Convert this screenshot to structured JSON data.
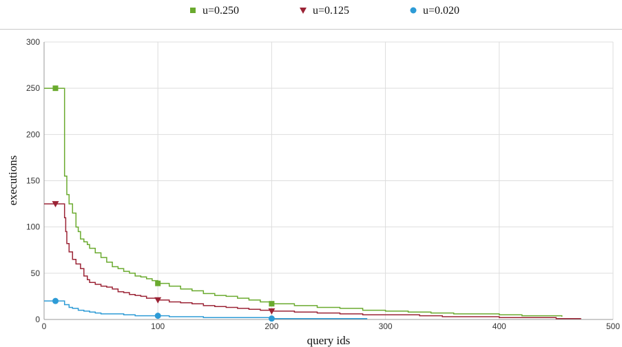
{
  "chart_data": {
    "type": "line",
    "title": "",
    "xlabel": "query ids",
    "ylabel": "executions",
    "xlim": [
      0,
      500
    ],
    "ylim": [
      0,
      300
    ],
    "x_ticks": [
      0,
      100,
      200,
      300,
      400,
      500
    ],
    "y_ticks": [
      0,
      50,
      100,
      150,
      200,
      250,
      300
    ],
    "grid": true,
    "legend_position": "top",
    "series": [
      {
        "name": "u=0.250",
        "color": "#6aaa2e",
        "marker": "square",
        "marker_x": [
          10,
          100,
          200
        ],
        "points": [
          [
            0,
            250
          ],
          [
            17,
            250
          ],
          [
            18,
            155
          ],
          [
            20,
            135
          ],
          [
            22,
            125
          ],
          [
            25,
            115
          ],
          [
            28,
            100
          ],
          [
            30,
            95
          ],
          [
            32,
            87
          ],
          [
            35,
            84
          ],
          [
            38,
            81
          ],
          [
            40,
            77
          ],
          [
            45,
            72
          ],
          [
            50,
            67
          ],
          [
            55,
            62
          ],
          [
            60,
            57
          ],
          [
            65,
            55
          ],
          [
            70,
            52
          ],
          [
            75,
            50
          ],
          [
            80,
            47
          ],
          [
            85,
            46
          ],
          [
            90,
            44
          ],
          [
            95,
            42
          ],
          [
            100,
            39
          ],
          [
            110,
            36
          ],
          [
            120,
            33
          ],
          [
            130,
            31
          ],
          [
            140,
            28
          ],
          [
            150,
            26
          ],
          [
            160,
            25
          ],
          [
            170,
            23
          ],
          [
            180,
            21
          ],
          [
            190,
            19
          ],
          [
            200,
            17
          ],
          [
            220,
            15
          ],
          [
            240,
            13
          ],
          [
            260,
            12
          ],
          [
            280,
            10
          ],
          [
            300,
            9
          ],
          [
            320,
            8
          ],
          [
            340,
            7
          ],
          [
            360,
            6
          ],
          [
            380,
            6
          ],
          [
            400,
            5
          ],
          [
            420,
            4
          ],
          [
            440,
            4
          ],
          [
            455,
            3
          ]
        ]
      },
      {
        "name": "u=0.125",
        "color": "#9b2335",
        "marker": "triangle-down",
        "marker_x": [
          10,
          100,
          200
        ],
        "points": [
          [
            0,
            125
          ],
          [
            17,
            125
          ],
          [
            18,
            110
          ],
          [
            19,
            95
          ],
          [
            20,
            82
          ],
          [
            22,
            73
          ],
          [
            25,
            65
          ],
          [
            28,
            60
          ],
          [
            32,
            55
          ],
          [
            35,
            47
          ],
          [
            38,
            43
          ],
          [
            40,
            40
          ],
          [
            45,
            38
          ],
          [
            50,
            36
          ],
          [
            55,
            35
          ],
          [
            60,
            33
          ],
          [
            65,
            30
          ],
          [
            70,
            29
          ],
          [
            75,
            27
          ],
          [
            80,
            26
          ],
          [
            85,
            25
          ],
          [
            90,
            23
          ],
          [
            100,
            21
          ],
          [
            110,
            19
          ],
          [
            120,
            18
          ],
          [
            130,
            17
          ],
          [
            140,
            15
          ],
          [
            150,
            14
          ],
          [
            160,
            13
          ],
          [
            170,
            12
          ],
          [
            180,
            11
          ],
          [
            190,
            10
          ],
          [
            200,
            9
          ],
          [
            220,
            8
          ],
          [
            240,
            7
          ],
          [
            260,
            6
          ],
          [
            280,
            5
          ],
          [
            300,
            5
          ],
          [
            330,
            4
          ],
          [
            350,
            3
          ],
          [
            380,
            3
          ],
          [
            400,
            2
          ],
          [
            430,
            2
          ],
          [
            450,
            1
          ],
          [
            472,
            1
          ]
        ]
      },
      {
        "name": "u=0.020",
        "color": "#2d9bd6",
        "marker": "circle",
        "marker_x": [
          10,
          100,
          200
        ],
        "points": [
          [
            0,
            20
          ],
          [
            15,
            20
          ],
          [
            18,
            16
          ],
          [
            22,
            13
          ],
          [
            25,
            12
          ],
          [
            30,
            10
          ],
          [
            35,
            9
          ],
          [
            40,
            8
          ],
          [
            45,
            7
          ],
          [
            50,
            6
          ],
          [
            60,
            6
          ],
          [
            70,
            5
          ],
          [
            80,
            4
          ],
          [
            90,
            4
          ],
          [
            100,
            4
          ],
          [
            110,
            3
          ],
          [
            120,
            3
          ],
          [
            140,
            2
          ],
          [
            160,
            2
          ],
          [
            180,
            2
          ],
          [
            200,
            1
          ],
          [
            230,
            1
          ],
          [
            260,
            1
          ],
          [
            284,
            1
          ]
        ]
      }
    ]
  }
}
